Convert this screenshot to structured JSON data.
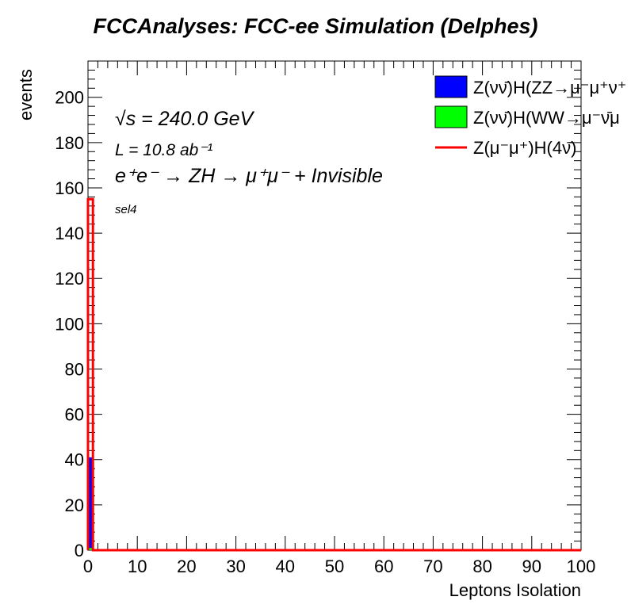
{
  "chart_data": {
    "type": "bar",
    "title": "FCCAnalyses: FCC-ee Simulation (Delphes)",
    "xlabel": "Leptons Isolation",
    "ylabel": "events",
    "xlim": [
      0,
      100
    ],
    "ylim": [
      0,
      216
    ],
    "x_major_ticks": [
      0,
      10,
      20,
      30,
      40,
      50,
      60,
      70,
      80,
      90,
      100
    ],
    "y_major_ticks": [
      0,
      20,
      40,
      60,
      80,
      100,
      120,
      140,
      160,
      180,
      200
    ],
    "bin_width": 1,
    "legend_position": "top-right",
    "series": [
      {
        "name": "Z(νν̄)H(ZZ→μ⁻μ⁺ν⁺",
        "style": "filled",
        "color": "#0000ff",
        "bins": [
          {
            "x0": 0,
            "x1": 1,
            "y": 41
          }
        ]
      },
      {
        "name": "Z(νν̄)H(WW→μ⁻ν̄μ",
        "style": "filled",
        "color": "#00ff00",
        "bins": [
          {
            "x0": 0,
            "x1": 1,
            "y": 1
          }
        ]
      },
      {
        "name": "Z(μ⁻μ⁺)H(4ν̄)",
        "style": "line",
        "color": "#ff0000",
        "bins": [
          {
            "x0": 0,
            "x1": 1,
            "y": 155
          }
        ]
      }
    ],
    "annotations": {
      "energy": "√s = 240.0 GeV",
      "lumi": "L = 10.8 ab⁻¹",
      "process": "e⁺e⁻ → ZH → μ⁺μ⁻ + Invisible",
      "selection": "sel4"
    }
  }
}
